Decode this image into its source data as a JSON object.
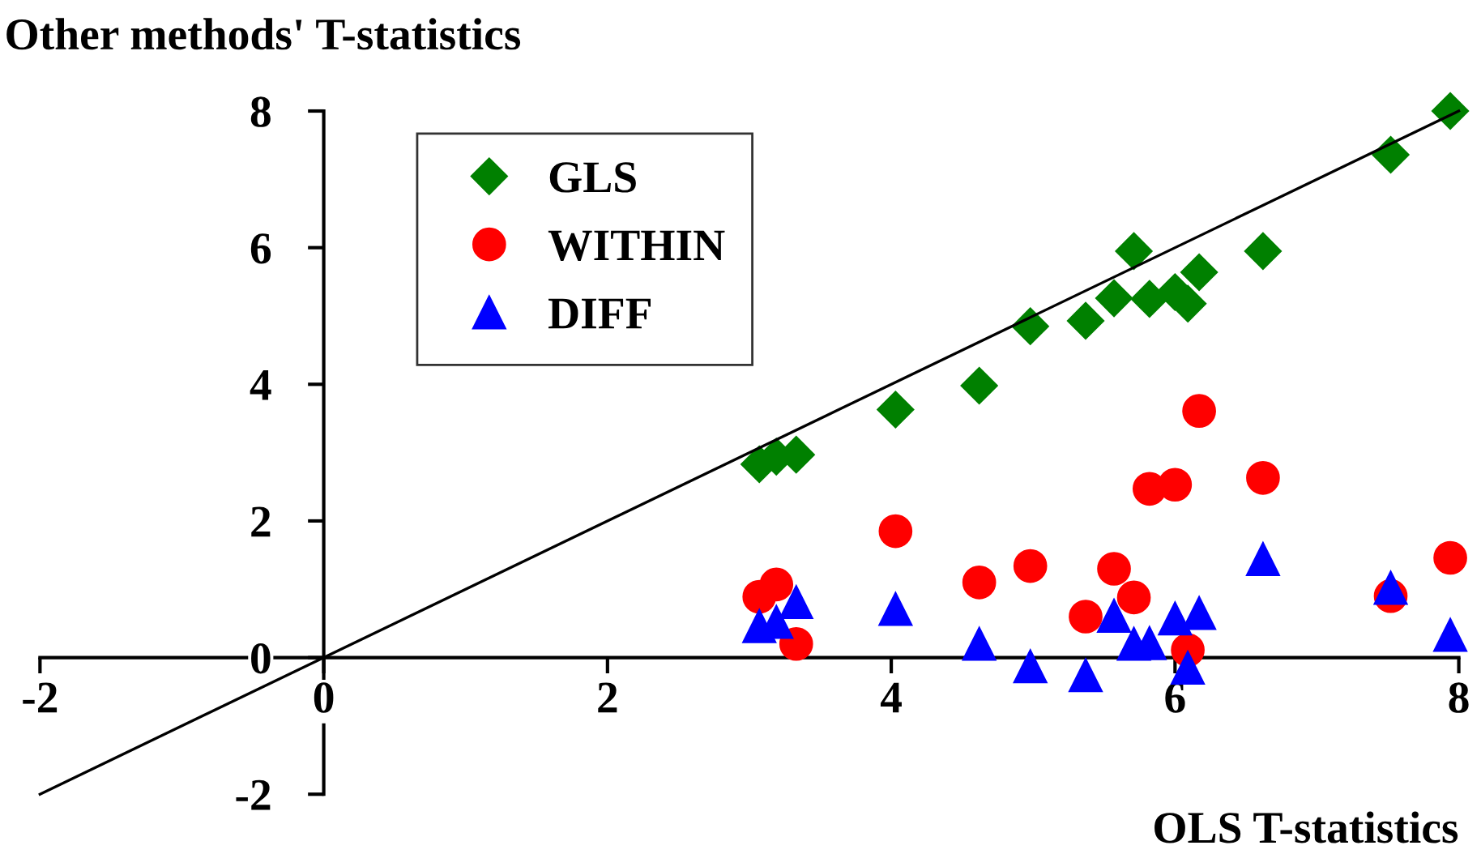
{
  "chart_data": {
    "type": "scatter",
    "xlabel": "OLS T-statistics",
    "ylabel": "Other methods' T-statistics",
    "xlim": [
      -2,
      8
    ],
    "ylim": [
      -2,
      8
    ],
    "xticks": [
      -2,
      0,
      2,
      4,
      6,
      8
    ],
    "yticks": [
      -2,
      0,
      2,
      4,
      6,
      8
    ],
    "grid": false,
    "legend": "top left",
    "x": [
      3.07,
      3.19,
      3.33,
      4.03,
      4.62,
      4.98,
      5.37,
      5.57,
      5.71,
      5.82,
      6.0,
      6.09,
      6.17,
      6.62,
      7.52,
      7.94
    ],
    "series": [
      {
        "name": "GLS",
        "color": "#008000",
        "marker": "diamond",
        "values": [
          2.83,
          2.94,
          2.97,
          3.63,
          3.98,
          4.85,
          4.93,
          5.26,
          5.95,
          5.25,
          5.35,
          5.18,
          5.64,
          5.95,
          7.36,
          8.0
        ]
      },
      {
        "name": "WITHIN",
        "color": "#ff0000",
        "marker": "circle",
        "values": [
          0.89,
          1.07,
          0.2,
          1.85,
          1.1,
          1.34,
          0.6,
          1.3,
          0.88,
          2.47,
          2.53,
          0.11,
          3.61,
          2.63,
          0.9,
          1.46
        ]
      },
      {
        "name": "DIFF",
        "color": "#0000ff",
        "marker": "triangle",
        "values": [
          0.46,
          0.52,
          0.81,
          0.71,
          0.2,
          -0.13,
          -0.26,
          0.61,
          0.2,
          0.21,
          0.57,
          -0.15,
          0.65,
          1.44,
          1.02,
          0.33
        ]
      },
      {
        "type": "line",
        "color": "#000000",
        "marker": "none",
        "line_style": "solid",
        "x": [
          -2,
          8
        ],
        "values": [
          -2,
          8
        ]
      }
    ]
  }
}
